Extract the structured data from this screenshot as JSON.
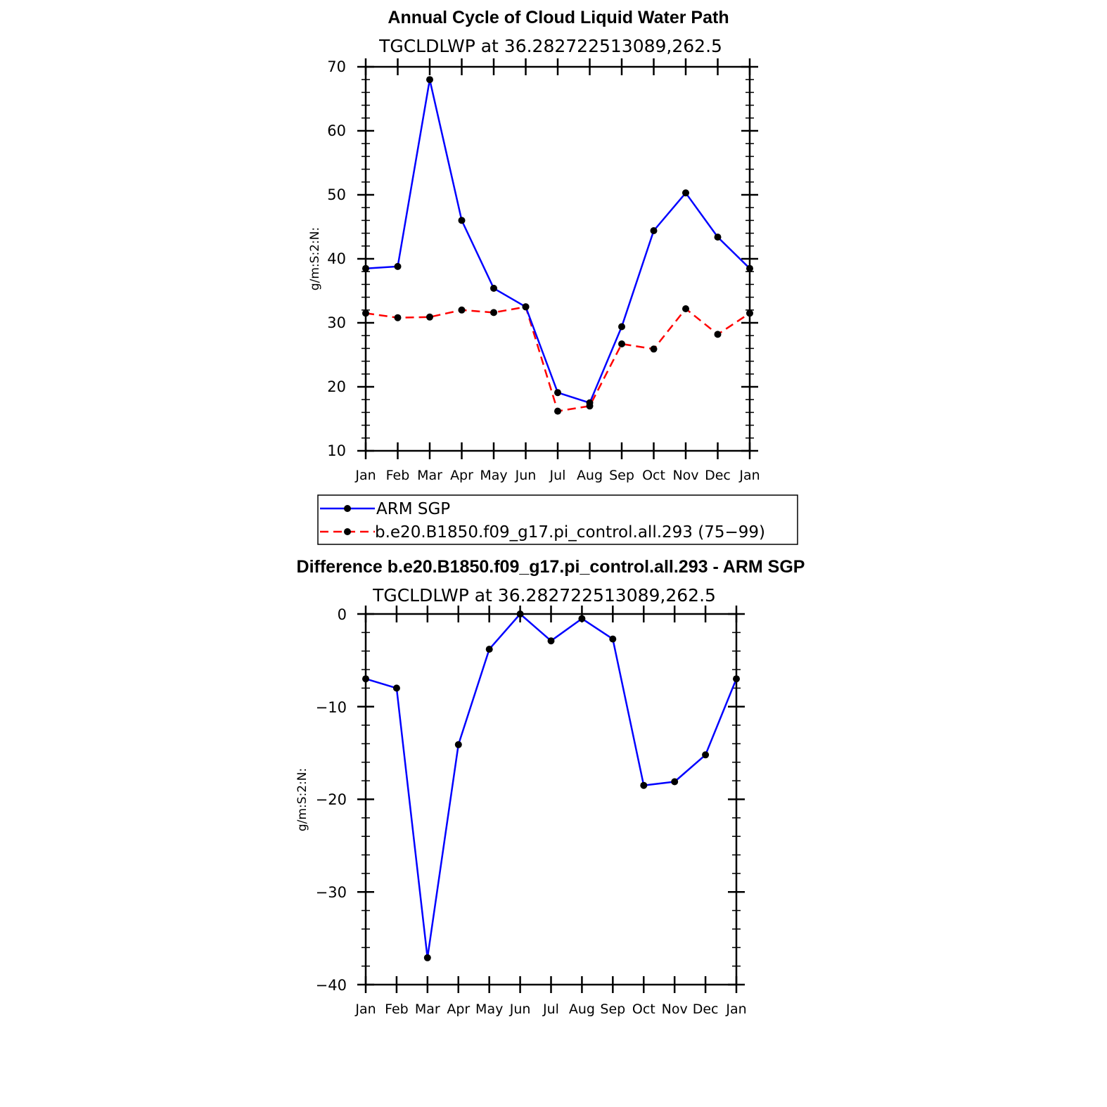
{
  "chart_data": [
    {
      "type": "line",
      "title": "Annual Cycle of Cloud Liquid Water Path",
      "subtitle": "TGCLDLWP  at  36.282722513089,262.5",
      "xlabel": "",
      "ylabel": "g/m:S:2:N:",
      "categories": [
        "Jan",
        "Feb",
        "Mar",
        "Apr",
        "May",
        "Jun",
        "Jul",
        "Aug",
        "Sep",
        "Oct",
        "Nov",
        "Dec",
        "Jan"
      ],
      "ylim": [
        10,
        70
      ],
      "yticks": [
        "10",
        "20",
        "30",
        "40",
        "50",
        "60",
        "70"
      ],
      "series": [
        {
          "name": "ARM SGP",
          "color": "#0000ff",
          "dash": "solid",
          "values": [
            38.5,
            38.8,
            68.0,
            46.0,
            35.4,
            32.5,
            19.1,
            17.5,
            29.4,
            44.4,
            50.3,
            43.4,
            38.5
          ]
        },
        {
          "name": "b.e20.B1850.f09_g17.pi_control.all.293 (75−99)",
          "color": "#ff0000",
          "dash": "dashed",
          "values": [
            31.5,
            30.8,
            30.9,
            32.0,
            31.6,
            32.5,
            16.2,
            17.0,
            26.7,
            25.9,
            32.2,
            28.2,
            31.5
          ]
        }
      ],
      "legend": "below"
    },
    {
      "type": "line",
      "title": "Difference b.e20.B1850.f09_g17.pi_control.all.293 - ARM SGP",
      "subtitle": "TGCLDLWP  at  36.282722513089,262.5",
      "xlabel": "",
      "ylabel": "g/m:S:2:N:",
      "categories": [
        "Jan",
        "Feb",
        "Mar",
        "Apr",
        "May",
        "Jun",
        "Jul",
        "Aug",
        "Sep",
        "Oct",
        "Nov",
        "Dec",
        "Jan"
      ],
      "ylim": [
        -40,
        0
      ],
      "yticks": [
        "−40",
        "−30",
        "−20",
        "−10",
        "0"
      ],
      "series": [
        {
          "name": "Difference",
          "color": "#0000ff",
          "dash": "solid",
          "values": [
            -7.0,
            -8.0,
            -37.1,
            -14.1,
            -3.8,
            0.0,
            -2.9,
            -0.5,
            -2.7,
            -18.5,
            -18.1,
            -15.2,
            -7.0
          ]
        }
      ]
    }
  ]
}
